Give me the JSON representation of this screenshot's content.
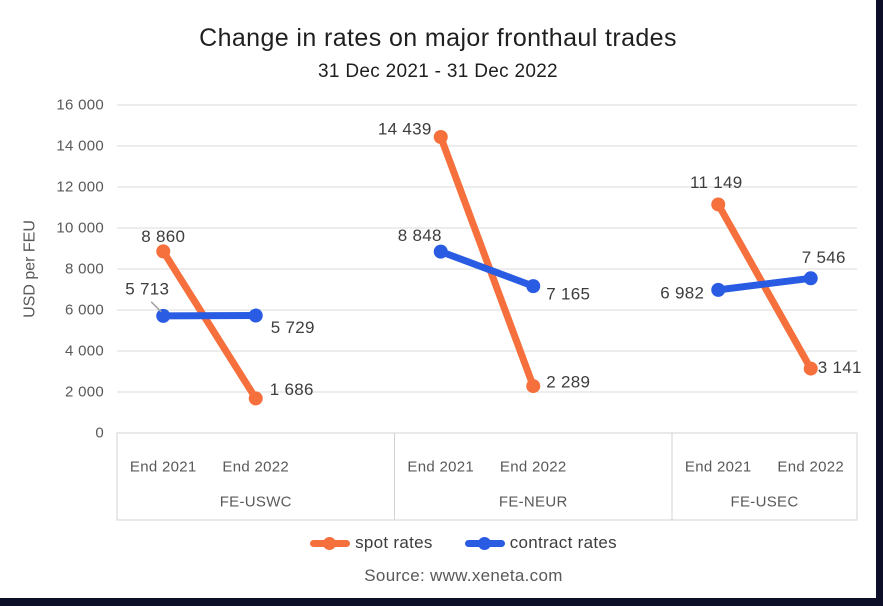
{
  "frame": {
    "background": "#0d0e28"
  },
  "chart_data": {
    "type": "line",
    "title": "Change in rates on major fronthaul trades",
    "subtitle": "31 Dec 2021 - 31 Dec 2022",
    "ylabel": "USD per FEU",
    "ylim": [
      0,
      16000
    ],
    "ytick_values": [
      0,
      2000,
      4000,
      6000,
      8000,
      10000,
      12000,
      14000,
      16000
    ],
    "ytick_labels": [
      "0",
      "2 000",
      "4 000",
      "6 000",
      "8 000",
      "10 000",
      "12 000",
      "14 000",
      "16 000"
    ],
    "categories": [
      "End 2021",
      "End 2022"
    ],
    "grid": true,
    "legend_position": "bottom",
    "series": [
      {
        "key": "spot",
        "name": "spot rates",
        "color": "#f5703c"
      },
      {
        "key": "contract",
        "name": "contract rates",
        "color": "#2a5ce3"
      }
    ],
    "groups": [
      {
        "label": "FE-USWC",
        "spot": {
          "values": [
            8860,
            1686
          ],
          "labels": [
            "8 860",
            "1 686"
          ]
        },
        "contract": {
          "values": [
            5713,
            5729
          ],
          "labels": [
            "5 713",
            "5 729"
          ]
        }
      },
      {
        "label": "FE-NEUR",
        "spot": {
          "values": [
            14439,
            2289
          ],
          "labels": [
            "14 439",
            "2 289"
          ]
        },
        "contract": {
          "values": [
            8848,
            7165
          ],
          "labels": [
            "8 848",
            "7 165"
          ]
        }
      },
      {
        "label": "FE-USEC",
        "spot": {
          "values": [
            11149,
            3141
          ],
          "labels": [
            "11 149",
            "3 141"
          ]
        },
        "contract": {
          "values": [
            6982,
            7546
          ],
          "labels": [
            "6 982",
            "7 546"
          ]
        }
      }
    ],
    "source": "Source: www.xeneta.com",
    "colors": {
      "grid": "#dbdbdb",
      "band_border": "#d3d3d3",
      "leader_line": "#9e9e9e",
      "data_label": "#3d3d3d",
      "tick_label": "#595959"
    }
  }
}
